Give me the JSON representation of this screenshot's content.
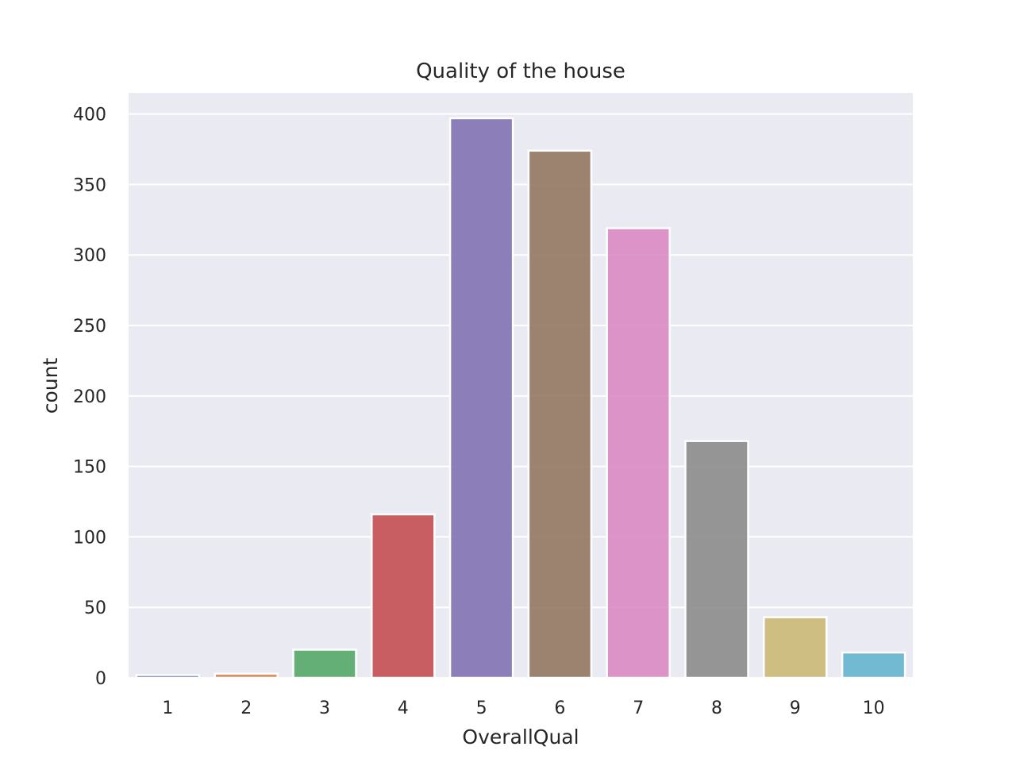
{
  "chart_data": {
    "type": "bar",
    "title": "Quality of the house",
    "xlabel": "OverallQual",
    "ylabel": "count",
    "categories": [
      "1",
      "2",
      "3",
      "4",
      "5",
      "6",
      "7",
      "8",
      "9",
      "10"
    ],
    "values": [
      2,
      3,
      20,
      116,
      397,
      374,
      319,
      168,
      43,
      18
    ],
    "ylim": [
      0,
      415
    ],
    "yticks": [
      0,
      50,
      100,
      150,
      200,
      250,
      300,
      350,
      400
    ],
    "grid": true,
    "legend": "none",
    "colors": [
      "#4c72b0",
      "#dd8452",
      "#55a868",
      "#c44e52",
      "#8172b3",
      "#937860",
      "#da8bc3",
      "#8c8c8c",
      "#ccb974",
      "#64b5cd"
    ],
    "background": "#eaeaf2",
    "bar_alpha": 0.9
  }
}
